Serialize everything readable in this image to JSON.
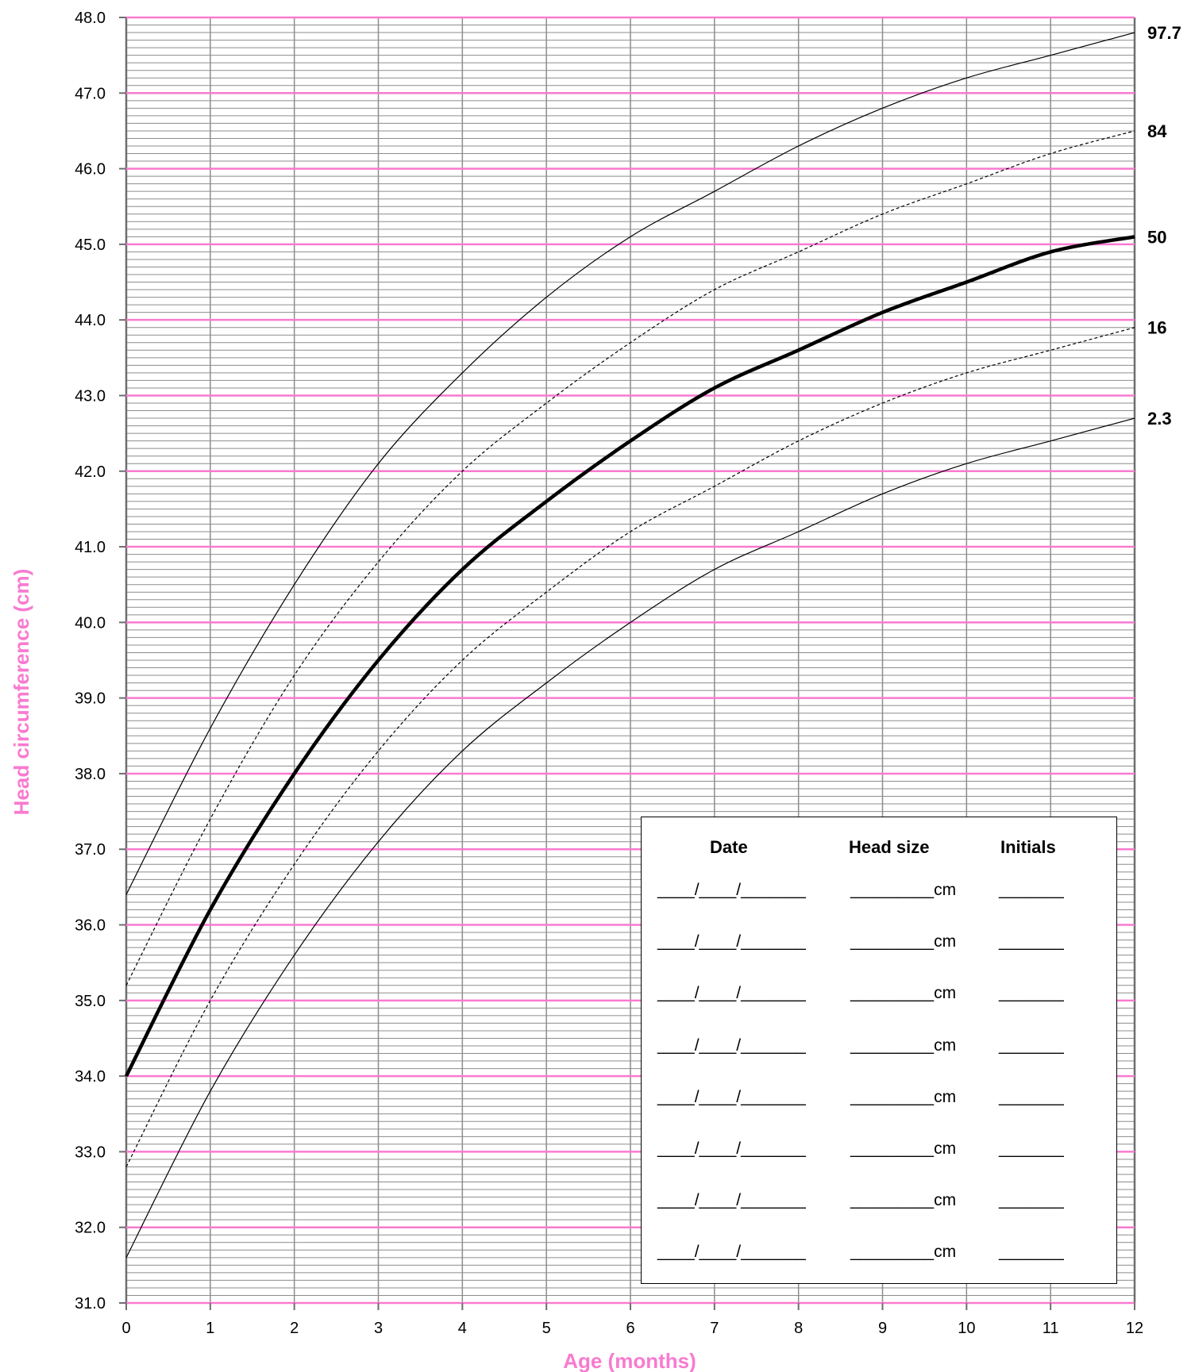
{
  "colors": {
    "pink": "#f97ad0",
    "grid_gray": "#8c8c8c",
    "line": "#000000"
  },
  "chart_data": {
    "type": "line",
    "title": "",
    "xlabel": "Age (months)",
    "ylabel": "Head circumference (cm)",
    "xlim": [
      0,
      12
    ],
    "ylim": [
      31.0,
      48.0
    ],
    "x_ticks": [
      "0",
      "1",
      "2",
      "3",
      "4",
      "5",
      "6",
      "7",
      "8",
      "9",
      "10",
      "11",
      "12"
    ],
    "y_ticks": [
      "31.0",
      "32.0",
      "33.0",
      "34.0",
      "35.0",
      "36.0",
      "37.0",
      "38.0",
      "39.0",
      "40.0",
      "41.0",
      "42.0",
      "43.0",
      "44.0",
      "45.0",
      "46.0",
      "47.0",
      "48.0"
    ],
    "grid": {
      "major_y_step": 1.0,
      "minor_y_step": 0.1,
      "x_step": 1
    },
    "x": [
      0,
      1,
      2,
      3,
      4,
      5,
      6,
      7,
      8,
      9,
      10,
      11,
      12
    ],
    "series": [
      {
        "name": "97.7",
        "style": "solid-thin",
        "values": [
          36.4,
          38.6,
          40.5,
          42.1,
          43.3,
          44.3,
          45.1,
          45.7,
          46.3,
          46.8,
          47.2,
          47.5,
          47.8
        ]
      },
      {
        "name": "84",
        "style": "dashed-thin",
        "values": [
          35.2,
          37.4,
          39.3,
          40.8,
          42.0,
          42.9,
          43.7,
          44.4,
          44.9,
          45.4,
          45.8,
          46.2,
          46.5
        ]
      },
      {
        "name": "50",
        "style": "solid-thick",
        "values": [
          34.0,
          36.2,
          38.0,
          39.5,
          40.7,
          41.6,
          42.4,
          43.1,
          43.6,
          44.1,
          44.5,
          44.9,
          45.1
        ]
      },
      {
        "name": "16",
        "style": "dashed-thin",
        "values": [
          32.8,
          35.0,
          36.8,
          38.3,
          39.5,
          40.4,
          41.2,
          41.8,
          42.4,
          42.9,
          43.3,
          43.6,
          43.9
        ]
      },
      {
        "name": "2.3",
        "style": "solid-thin",
        "values": [
          31.6,
          33.8,
          35.6,
          37.1,
          38.3,
          39.2,
          40.0,
          40.7,
          41.2,
          41.7,
          42.1,
          42.4,
          42.7
        ]
      }
    ]
  },
  "record_table": {
    "headers": {
      "date": "Date",
      "head_size": "Head size",
      "initials": "Initials"
    },
    "rows": [
      {
        "date": "____/____/_______",
        "head_size": "_________cm",
        "initials": "_______"
      },
      {
        "date": "____/____/_______",
        "head_size": "_________cm",
        "initials": "_______"
      },
      {
        "date": "____/____/_______",
        "head_size": "_________cm",
        "initials": "_______"
      },
      {
        "date": "____/____/_______",
        "head_size": "_________cm",
        "initials": "_______"
      },
      {
        "date": "____/____/_______",
        "head_size": "_________cm",
        "initials": "_______"
      },
      {
        "date": "____/____/_______",
        "head_size": "_________cm",
        "initials": "_______"
      },
      {
        "date": "____/____/_______",
        "head_size": "_________cm",
        "initials": "_______"
      },
      {
        "date": "____/____/_______",
        "head_size": "_________cm",
        "initials": "_______"
      }
    ]
  }
}
